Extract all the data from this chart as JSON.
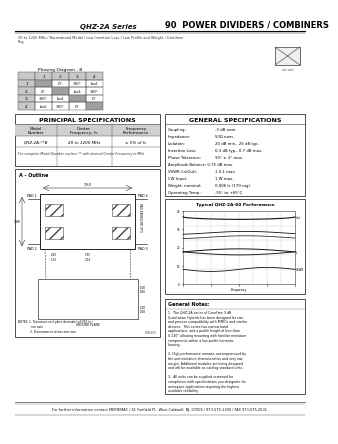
{
  "title_left": "QHZ-2A Series",
  "title_right": "90  POWER DIVIDERS / COMBINERS",
  "subtitle": "20 to 1200 MHz / Narrowband Model / Low Insertion Loss / Low Profile and Weight / Castilane",
  "subtitle2": "Pkg",
  "bg_color": "#ffffff",
  "phasing_table_title": "Phasing Diagram - B",
  "phasing_rows": [
    [
      "",
      "1",
      "2",
      "3",
      "4"
    ],
    [
      "1",
      "",
      "0°",
      "-90°",
      "Isol."
    ],
    [
      "2",
      "0°",
      "",
      "Isol.",
      "-90°"
    ],
    [
      "3",
      "-90°",
      "Isol.",
      "",
      "0°"
    ],
    [
      "4",
      "Isol.",
      "-90°",
      "0°",
      ""
    ]
  ],
  "principal_spec_title": "PRINCIPAL SPECIFICATIONS",
  "general_spec_title": "GENERAL SPECIFICATIONS",
  "ps_headers": [
    "Model\nNumber",
    "Center\nFrequency, fc",
    "Frequency\nPerformance"
  ],
  "ps_row": [
    "QHZ-2A-**B",
    "20 to 1200 MHz",
    "± 5% of fc"
  ],
  "ps_note": "For complete Model Number replace ** with desired Center Frequency in MHz",
  "gs_lines": [
    [
      "Coupling:",
      "-3 dB nom."
    ],
    [
      "Impedance:",
      "50Ω nom."
    ],
    [
      "Isolation:",
      "20 dB min., 25 dB typ."
    ],
    [
      "Insertion Loss:",
      "0.3 dB typ., 0.7 dB max."
    ],
    [
      "Phase Tolerance:",
      "90° ± 3° max."
    ],
    [
      "Amplitude Balance: 0.75 dB max.",
      ""
    ],
    [
      "VSWR (in/Out):",
      "1.5:1 max."
    ],
    [
      "CW Input:",
      "1 W max."
    ],
    [
      "Weight, nominal:",
      "0.006 lc (170 mg)"
    ],
    [
      "Operating Temp.:",
      "-55° to +65°C"
    ]
  ],
  "outline_title": "A - Outline",
  "typical_title": "Typical QHZ-2A-60 Performance",
  "general_notes_title": "General Notes:",
  "footer": "For further information contact MERRIMAC / 41 Fairfield Pl., West Caldwell, NJ, 07006 / 973-575-1300 / FAX 973-575-2531"
}
